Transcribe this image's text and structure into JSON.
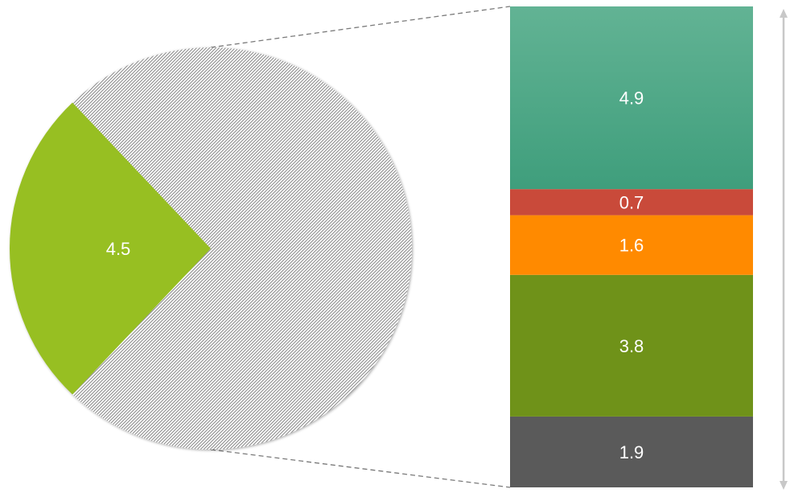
{
  "chart_data": {
    "type": "bar-of-pie",
    "title": "",
    "pie": {
      "slices": [
        {
          "label": "",
          "value": 4.5,
          "display": "4.5",
          "color": "#97bf22"
        },
        {
          "label": "",
          "value": 12.9,
          "display": "",
          "color": "#8c8c8c",
          "pattern": "diagonal-hatch",
          "expanded": true
        }
      ]
    },
    "bar": {
      "segments": [
        {
          "label": "",
          "value": 1.9,
          "display": "1.9",
          "color": "#5a5a5a"
        },
        {
          "label": "",
          "value": 3.8,
          "display": "3.8",
          "color": "#6f9219"
        },
        {
          "label": "",
          "value": 1.6,
          "display": "1.6",
          "color": "#ff8a00"
        },
        {
          "label": "",
          "value": 0.7,
          "display": "0.7",
          "color": "#c94a3a"
        },
        {
          "label": "",
          "value": 4.9,
          "display": "4.9",
          "color": "#46a886"
        }
      ]
    },
    "connector_lines": "dashed",
    "scale_arrow": true,
    "legend": "none",
    "grid": false
  }
}
